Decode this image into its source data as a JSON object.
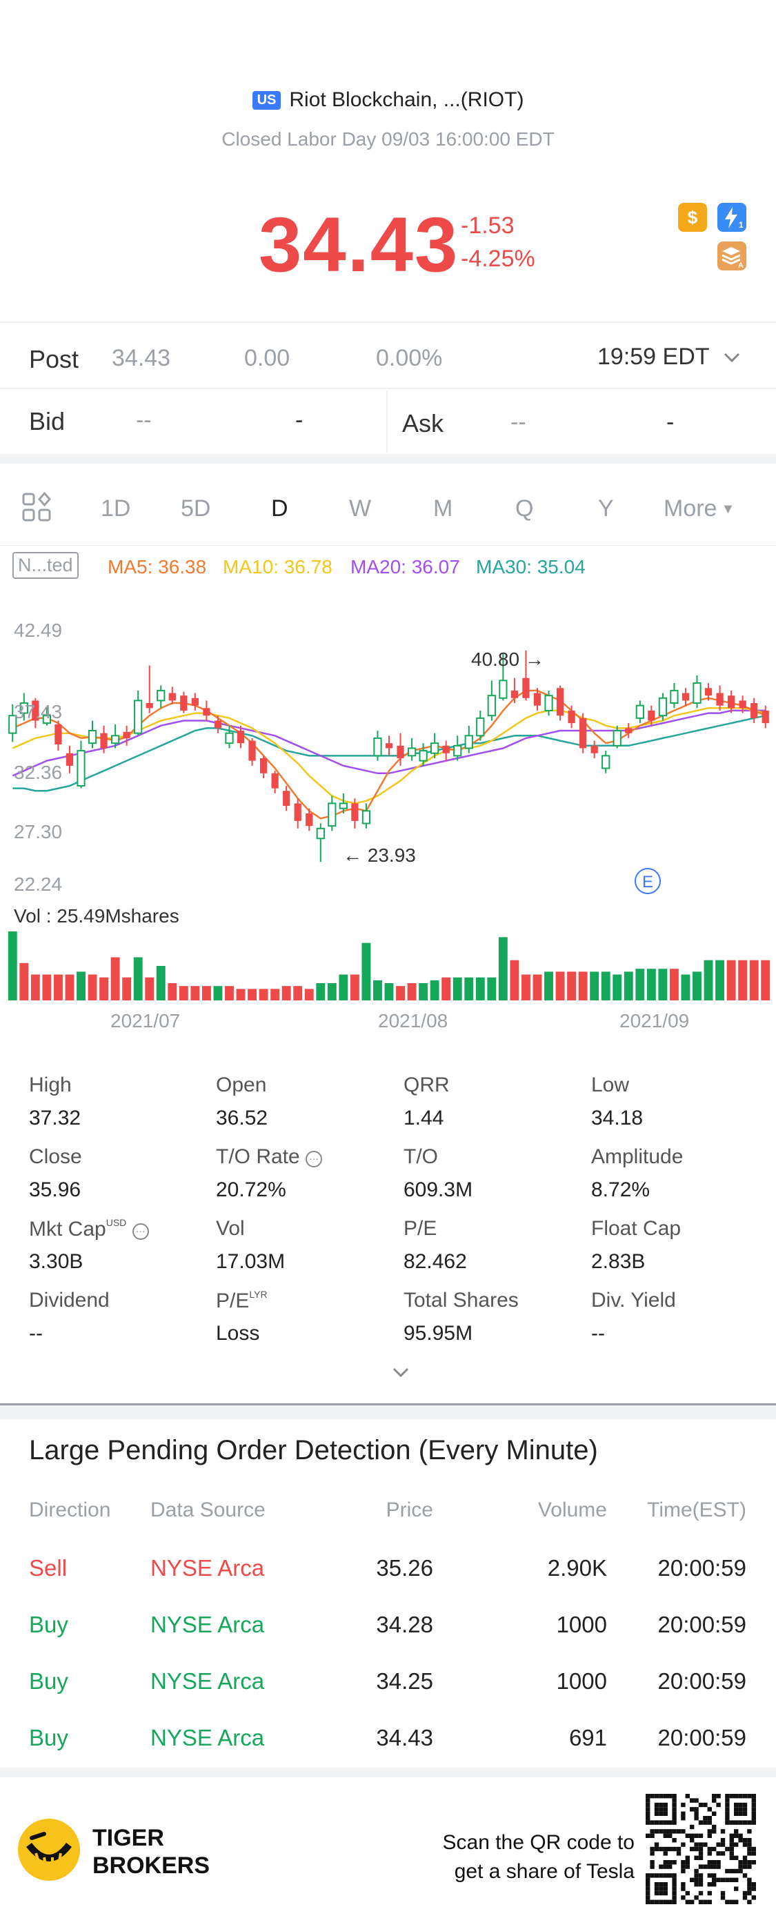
{
  "header": {
    "market_badge": "US",
    "title": "Riot Blockchain, ...(RIOT)",
    "status": "Closed Labor Day 09/03 16:00:00 EDT",
    "price": "34.43",
    "change": "-1.53",
    "change_pct": "-4.25%",
    "icons": {
      "dollar": "$",
      "lightning_sub": "1",
      "layers_sub": "A"
    }
  },
  "post": {
    "label": "Post",
    "price": "34.43",
    "change": "0.00",
    "change_pct": "0.00%",
    "time": "19:59 EDT"
  },
  "bid_ask": {
    "bid_label": "Bid",
    "bid_price": "--",
    "bid_vol": "-",
    "ask_label": "Ask",
    "ask_price": "--",
    "ask_vol": "-"
  },
  "tabs": [
    "1D",
    "5D",
    "D",
    "W",
    "M",
    "Q",
    "Y",
    "More"
  ],
  "active_tab": "D",
  "adjust_label": "N...ted",
  "ma": {
    "ma5": "MA5: 36.38",
    "ma10": "MA10: 36.78",
    "ma20": "MA20: 36.07",
    "ma30": "MA30: 35.04"
  },
  "chart_data": {
    "type": "candlestick",
    "y_ticks": [
      "42.49",
      "37.43",
      "32.36",
      "27.30",
      "22.24"
    ],
    "ylim": [
      22.24,
      42.49
    ],
    "x_labels": [
      "2021/07",
      "2021/08",
      "2021/09"
    ],
    "annotations": {
      "high": "40.80",
      "low": "23.93",
      "event_marker": "E"
    },
    "volume_label": "Vol  : 25.49Mshares",
    "colors": {
      "up": "#15a85a",
      "down": "#ee4a4a",
      "ma5": "#f07a2e",
      "ma10": "#f2c71c",
      "ma20": "#a24ff0",
      "ma30": "#26a69a"
    },
    "candles": [
      {
        "o": 34.2,
        "c": 35.6,
        "h": 36.5,
        "l": 33.5
      },
      {
        "o": 35.8,
        "c": 36.6,
        "h": 37.4,
        "l": 35.2
      },
      {
        "o": 36.8,
        "c": 35.2,
        "h": 37.0,
        "l": 34.6
      },
      {
        "o": 35.0,
        "c": 35.6,
        "h": 36.3,
        "l": 34.8
      },
      {
        "o": 34.9,
        "c": 33.3,
        "h": 35.2,
        "l": 32.8
      },
      {
        "o": 32.6,
        "c": 31.6,
        "h": 33.2,
        "l": 31.0
      },
      {
        "o": 30.0,
        "c": 32.8,
        "h": 33.6,
        "l": 29.8
      },
      {
        "o": 33.4,
        "c": 34.4,
        "h": 35.2,
        "l": 33.0
      },
      {
        "o": 34.2,
        "c": 33.0,
        "h": 34.8,
        "l": 32.6
      },
      {
        "o": 33.4,
        "c": 34.0,
        "h": 34.9,
        "l": 33.0
      },
      {
        "o": 34.3,
        "c": 33.8,
        "h": 34.8,
        "l": 33.2
      },
      {
        "o": 34.2,
        "c": 36.8,
        "h": 37.6,
        "l": 34.0
      },
      {
        "o": 36.6,
        "c": 36.2,
        "h": 39.6,
        "l": 35.8
      },
      {
        "o": 36.8,
        "c": 37.6,
        "h": 38.0,
        "l": 36.2
      },
      {
        "o": 37.4,
        "c": 36.8,
        "h": 37.9,
        "l": 36.5
      },
      {
        "o": 37.2,
        "c": 36.0,
        "h": 37.5,
        "l": 35.8
      },
      {
        "o": 37.0,
        "c": 36.4,
        "h": 37.4,
        "l": 36.0
      },
      {
        "o": 36.2,
        "c": 35.6,
        "h": 36.8,
        "l": 35.2
      },
      {
        "o": 35.2,
        "c": 34.6,
        "h": 35.6,
        "l": 34.2
      },
      {
        "o": 33.4,
        "c": 34.2,
        "h": 34.8,
        "l": 33.0
      },
      {
        "o": 34.4,
        "c": 33.4,
        "h": 34.8,
        "l": 33.0
      },
      {
        "o": 33.6,
        "c": 32.0,
        "h": 33.8,
        "l": 31.6
      },
      {
        "o": 32.2,
        "c": 31.0,
        "h": 32.4,
        "l": 30.6
      },
      {
        "o": 31.0,
        "c": 29.8,
        "h": 31.2,
        "l": 29.4
      },
      {
        "o": 29.6,
        "c": 28.4,
        "h": 30.0,
        "l": 28.0
      },
      {
        "o": 28.6,
        "c": 27.2,
        "h": 29.0,
        "l": 26.6
      },
      {
        "o": 27.8,
        "c": 26.8,
        "h": 28.2,
        "l": 26.4
      },
      {
        "o": 25.8,
        "c": 26.6,
        "h": 27.0,
        "l": 23.93
      },
      {
        "o": 26.8,
        "c": 28.6,
        "h": 29.2,
        "l": 26.4
      },
      {
        "o": 28.2,
        "c": 28.6,
        "h": 29.4,
        "l": 27.8
      },
      {
        "o": 28.6,
        "c": 27.2,
        "h": 29.0,
        "l": 26.6
      },
      {
        "o": 27.0,
        "c": 28.0,
        "h": 28.6,
        "l": 26.6
      },
      {
        "o": 32.4,
        "c": 33.8,
        "h": 34.4,
        "l": 32.0
      },
      {
        "o": 33.4,
        "c": 33.0,
        "h": 34.0,
        "l": 32.4
      },
      {
        "o": 33.2,
        "c": 32.2,
        "h": 34.2,
        "l": 31.6
      },
      {
        "o": 32.4,
        "c": 33.0,
        "h": 33.8,
        "l": 32.0
      },
      {
        "o": 32.0,
        "c": 32.8,
        "h": 33.4,
        "l": 31.6
      },
      {
        "o": 32.6,
        "c": 33.4,
        "h": 34.2,
        "l": 32.2
      },
      {
        "o": 33.2,
        "c": 32.6,
        "h": 33.6,
        "l": 32.0
      },
      {
        "o": 32.4,
        "c": 33.2,
        "h": 34.0,
        "l": 32.0
      },
      {
        "o": 33.0,
        "c": 34.0,
        "h": 34.8,
        "l": 32.6
      },
      {
        "o": 34.0,
        "c": 35.4,
        "h": 36.0,
        "l": 33.6
      },
      {
        "o": 35.6,
        "c": 37.2,
        "h": 38.4,
        "l": 35.2
      },
      {
        "o": 37.0,
        "c": 38.4,
        "h": 40.6,
        "l": 36.8
      },
      {
        "o": 37.6,
        "c": 37.0,
        "h": 38.6,
        "l": 36.6
      },
      {
        "o": 38.6,
        "c": 37.0,
        "h": 40.8,
        "l": 36.8
      },
      {
        "o": 37.4,
        "c": 36.4,
        "h": 37.8,
        "l": 36.0
      },
      {
        "o": 36.0,
        "c": 37.2,
        "h": 37.6,
        "l": 35.6
      },
      {
        "o": 37.8,
        "c": 35.6,
        "h": 38.0,
        "l": 35.2
      },
      {
        "o": 36.0,
        "c": 35.0,
        "h": 36.4,
        "l": 34.6
      },
      {
        "o": 35.4,
        "c": 33.0,
        "h": 35.8,
        "l": 32.6
      },
      {
        "o": 33.2,
        "c": 32.6,
        "h": 33.6,
        "l": 32.2
      },
      {
        "o": 31.4,
        "c": 32.4,
        "h": 32.8,
        "l": 31.0
      },
      {
        "o": 33.2,
        "c": 34.4,
        "h": 34.8,
        "l": 33.0
      },
      {
        "o": 34.6,
        "c": 34.2,
        "h": 35.0,
        "l": 33.8
      },
      {
        "o": 35.4,
        "c": 36.4,
        "h": 36.8,
        "l": 35.0
      },
      {
        "o": 36.0,
        "c": 35.2,
        "h": 36.4,
        "l": 34.8
      },
      {
        "o": 35.6,
        "c": 37.0,
        "h": 37.4,
        "l": 35.2
      },
      {
        "o": 36.6,
        "c": 37.6,
        "h": 38.2,
        "l": 36.2
      },
      {
        "o": 37.4,
        "c": 36.8,
        "h": 37.8,
        "l": 36.4
      },
      {
        "o": 36.6,
        "c": 38.2,
        "h": 38.8,
        "l": 36.2
      },
      {
        "o": 37.8,
        "c": 37.2,
        "h": 38.2,
        "l": 36.8
      },
      {
        "o": 37.4,
        "c": 36.4,
        "h": 38.0,
        "l": 36.0
      },
      {
        "o": 37.2,
        "c": 36.2,
        "h": 37.6,
        "l": 35.8
      },
      {
        "o": 36.8,
        "c": 36.2,
        "h": 37.2,
        "l": 35.8
      },
      {
        "o": 36.6,
        "c": 35.4,
        "h": 37.0,
        "l": 35.0
      },
      {
        "o": 36.0,
        "c": 35.0,
        "h": 36.4,
        "l": 34.6
      }
    ],
    "ma5": [
      34.6,
      35.0,
      35.4,
      35.4,
      35.0,
      34.2,
      33.8,
      33.9,
      33.8,
      33.6,
      33.9,
      34.8,
      35.6,
      36.2,
      36.6,
      36.6,
      36.4,
      36.0,
      35.4,
      34.8,
      34.2,
      33.4,
      32.4,
      31.4,
      30.2,
      29.0,
      28.0,
      27.4,
      27.6,
      28.0,
      28.2,
      28.0,
      29.6,
      31.2,
      32.2,
      32.8,
      33.0,
      33.2,
      33.0,
      32.8,
      33.2,
      33.8,
      34.8,
      36.0,
      37.0,
      37.6,
      37.6,
      37.2,
      36.8,
      36.0,
      35.2,
      34.2,
      33.4,
      33.6,
      34.2,
      34.8,
      35.2,
      35.6,
      36.0,
      36.4,
      36.8,
      37.0,
      36.8,
      36.6,
      36.4,
      36.0,
      35.6
    ],
    "ma10": [
      33.0,
      33.4,
      33.8,
      34.0,
      34.2,
      34.2,
      34.0,
      33.8,
      33.8,
      33.8,
      34.0,
      34.4,
      34.8,
      35.2,
      35.4,
      35.6,
      35.8,
      35.8,
      35.6,
      35.4,
      35.0,
      34.6,
      34.0,
      33.4,
      32.6,
      31.8,
      30.8,
      30.0,
      29.2,
      28.8,
      28.6,
      28.8,
      29.2,
      29.8,
      30.4,
      31.2,
      31.8,
      32.4,
      32.8,
      33.0,
      33.0,
      33.2,
      33.6,
      34.2,
      34.8,
      35.4,
      35.8,
      36.0,
      36.0,
      35.8,
      35.4,
      35.2,
      34.8,
      34.6,
      34.6,
      34.8,
      35.0,
      35.2,
      35.6,
      35.8,
      36.0,
      36.2,
      36.2,
      36.2,
      36.2,
      36.0,
      35.8
    ],
    "ma20": [
      30.8,
      31.2,
      31.6,
      32.0,
      32.2,
      32.4,
      32.6,
      32.8,
      33.0,
      33.2,
      33.6,
      34.0,
      34.4,
      34.8,
      35.0,
      35.2,
      35.2,
      35.2,
      35.0,
      34.8,
      34.6,
      34.4,
      34.2,
      34.0,
      33.6,
      33.2,
      32.8,
      32.4,
      32.0,
      31.6,
      31.4,
      31.2,
      31.0,
      31.0,
      31.2,
      31.4,
      31.6,
      31.8,
      32.0,
      32.2,
      32.4,
      32.6,
      32.8,
      33.0,
      33.4,
      33.8,
      34.0,
      34.2,
      34.4,
      34.4,
      34.4,
      34.4,
      34.4,
      34.4,
      34.4,
      34.6,
      34.8,
      35.0,
      35.2,
      35.4,
      35.6,
      35.8,
      35.8,
      36.0,
      36.0,
      36.0,
      36.0
    ],
    "ma30": [
      29.8,
      29.8,
      29.6,
      29.6,
      29.8,
      30.0,
      30.4,
      30.8,
      31.2,
      31.6,
      32.0,
      32.4,
      32.8,
      33.2,
      33.6,
      34.0,
      34.4,
      34.6,
      34.6,
      34.4,
      34.2,
      34.0,
      33.6,
      33.2,
      32.8,
      32.6,
      32.4,
      32.4,
      32.4,
      32.4,
      32.4,
      32.4,
      32.4,
      32.4,
      32.4,
      32.6,
      32.6,
      32.8,
      33.0,
      33.2,
      33.4,
      33.4,
      33.6,
      33.8,
      34.0,
      34.0,
      34.0,
      33.8,
      33.6,
      33.4,
      33.2,
      33.2,
      33.2,
      33.2,
      33.2,
      33.4,
      33.6,
      33.8,
      34.0,
      34.2,
      34.4,
      34.6,
      34.8,
      35.0,
      35.2,
      35.4,
      35.6
    ],
    "volume_up": [
      1,
      0,
      0,
      0,
      0,
      0,
      1,
      0,
      0,
      0,
      0,
      1,
      0,
      1,
      0,
      0,
      0,
      0,
      1,
      0,
      0,
      0,
      0,
      0,
      0,
      0,
      0,
      1,
      1,
      1,
      0,
      1,
      1,
      1,
      0,
      0,
      1,
      1,
      0,
      1,
      1,
      1,
      1,
      1,
      0,
      0,
      0,
      1,
      0,
      0,
      0,
      1,
      1,
      1,
      1,
      1,
      1,
      1,
      0,
      1,
      1,
      1,
      1,
      0,
      0,
      0,
      0
    ],
    "volume": [
      24,
      13,
      9,
      9,
      9,
      9,
      10,
      9,
      8,
      15,
      8,
      15,
      8,
      12,
      6,
      5,
      5,
      5,
      5,
      5,
      4,
      4,
      4,
      4,
      5,
      5,
      4,
      6,
      6,
      9,
      9,
      20,
      7,
      6,
      5,
      6,
      6,
      7,
      8,
      8,
      8,
      8,
      8,
      22,
      14,
      9,
      9,
      10,
      10,
      10,
      10,
      10,
      10,
      9,
      10,
      11,
      11,
      11,
      11,
      9,
      10,
      14,
      14,
      14,
      14,
      14,
      14
    ]
  },
  "stats": [
    {
      "label": "High",
      "value": "37.32"
    },
    {
      "label": "Open",
      "value": "36.52"
    },
    {
      "label": "QRR",
      "value": "1.44"
    },
    {
      "label": "Low",
      "value": "34.18"
    },
    {
      "label": "Close",
      "value": "35.96"
    },
    {
      "label": "T/O Rate",
      "value": "20.72%"
    },
    {
      "label": "T/O",
      "value": "609.3M"
    },
    {
      "label": "Amplitude",
      "value": "8.72%"
    },
    {
      "label": "Mkt Cap",
      "value": "3.30B",
      "sup": "USD"
    },
    {
      "label": "Vol",
      "value": "17.03M"
    },
    {
      "label": "P/E",
      "value": "82.462"
    },
    {
      "label": "Float Cap",
      "value": "2.83B"
    },
    {
      "label": "Dividend",
      "value": "--"
    },
    {
      "label": "P/E",
      "value": "Loss",
      "sup": "LYR"
    },
    {
      "label": "Total Shares",
      "value": "95.95M"
    },
    {
      "label": "Div. Yield",
      "value": "--"
    }
  ],
  "orders": {
    "title": "Large Pending Order Detection (Every Minute)",
    "headers": [
      "Direction",
      "Data Source",
      "Price",
      "Volume",
      "Time(EST)"
    ],
    "rows": [
      {
        "dir": "Sell",
        "src": "NYSE Arca",
        "price": "35.26",
        "vol": "2.90K",
        "time": "20:00:59"
      },
      {
        "dir": "Buy",
        "src": "NYSE Arca",
        "price": "34.28",
        "vol": "1000",
        "time": "20:00:59"
      },
      {
        "dir": "Buy",
        "src": "NYSE Arca",
        "price": "34.25",
        "vol": "1000",
        "time": "20:00:59"
      },
      {
        "dir": "Buy",
        "src": "NYSE Arca",
        "price": "34.43",
        "vol": "691",
        "time": "20:00:59"
      }
    ]
  },
  "footer": {
    "brand_line1": "TIGER",
    "brand_line2": "BROKERS",
    "cta_line1": "Scan the QR code to",
    "cta_line2": "get a share of Tesla"
  }
}
